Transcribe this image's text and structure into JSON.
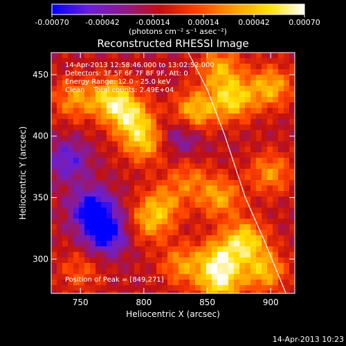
{
  "chart_data": {
    "type": "heatmap",
    "title": "Reconstructed RHESSI Image",
    "xlabel": "Heliocentric X (arcsec)",
    "ylabel": "Heliocentric Y (arcsec)",
    "xlim": [
      727,
      919
    ],
    "ylim": [
      272,
      468
    ],
    "x_ticks": [
      750,
      800,
      850,
      900
    ],
    "x_tick_labels": [
      "750",
      "800",
      "850",
      "900"
    ],
    "y_ticks": [
      300,
      350,
      400,
      450
    ],
    "y_tick_labels": [
      "300",
      "350",
      "400",
      "450"
    ],
    "colorbar": {
      "range": [
        -0.0007,
        0.0007
      ],
      "tick_values": [
        -0.0007,
        -0.00042,
        -0.00014,
        0.00014,
        0.00042,
        0.0007
      ],
      "tick_labels": [
        "-0.00070",
        "-0.00042",
        "-0.00014",
        "0.00014",
        "0.00042",
        "0.00070"
      ],
      "unit": "(photons cm⁻² s⁻¹ asec⁻²)",
      "colormap": "blue-purple-red-orange-yellow-white",
      "colors": [
        "#0000ff",
        "#6a1fd4",
        "#8c1a8c",
        "#c01010",
        "#ff4000",
        "#ff9a00",
        "#ffe000",
        "#ffffff"
      ]
    },
    "annotations": [
      "14-Apr-2013 12:58:46.000 to 13:02:52.000",
      "Detectors: 3F 5F 6F 7F 8F 9F, Att: 0",
      "Energy Range: 12.0 - 25.0 keV",
      "Clean    Total counts: 2.49E+04",
      "Position of Peak = [849,271]"
    ],
    "limb_curve": [
      [
        835,
        468
      ],
      [
        850,
        438
      ],
      [
        864,
        400
      ],
      [
        880,
        350
      ],
      [
        895,
        315
      ],
      [
        912,
        272
      ]
    ],
    "intensity_blobs": [
      {
        "x": 840,
        "y": 420,
        "value": 0.00055
      },
      {
        "x": 870,
        "y": 430,
        "value": 0.0006
      },
      {
        "x": 900,
        "y": 440,
        "value": 0.0005
      },
      {
        "x": 860,
        "y": 455,
        "value": 0.00045
      },
      {
        "x": 775,
        "y": 430,
        "value": 0.0006
      },
      {
        "x": 790,
        "y": 415,
        "value": 0.00055
      },
      {
        "x": 800,
        "y": 395,
        "value": 0.0005
      },
      {
        "x": 745,
        "y": 430,
        "value": 0.0004
      },
      {
        "x": 880,
        "y": 315,
        "value": 0.0006
      },
      {
        "x": 860,
        "y": 300,
        "value": 0.00055
      },
      {
        "x": 895,
        "y": 290,
        "value": 0.0005
      },
      {
        "x": 860,
        "y": 280,
        "value": 0.0006
      },
      {
        "x": 830,
        "y": 295,
        "value": 0.0004
      },
      {
        "x": 805,
        "y": 330,
        "value": 0.0004
      },
      {
        "x": 815,
        "y": 345,
        "value": 0.00035
      },
      {
        "x": 900,
        "y": 370,
        "value": 0.0004
      },
      {
        "x": 860,
        "y": 350,
        "value": 0.00045
      },
      {
        "x": 835,
        "y": 365,
        "value": 0.0003
      },
      {
        "x": 750,
        "y": 290,
        "value": 0.00025
      },
      {
        "x": 760,
        "y": 340,
        "value": -0.00065
      },
      {
        "x": 770,
        "y": 320,
        "value": -0.0006
      },
      {
        "x": 740,
        "y": 380,
        "value": -0.0004
      },
      {
        "x": 830,
        "y": 400,
        "value": -0.0003
      }
    ]
  },
  "footer": {
    "date": "14-Apr-2013 10:23"
  }
}
